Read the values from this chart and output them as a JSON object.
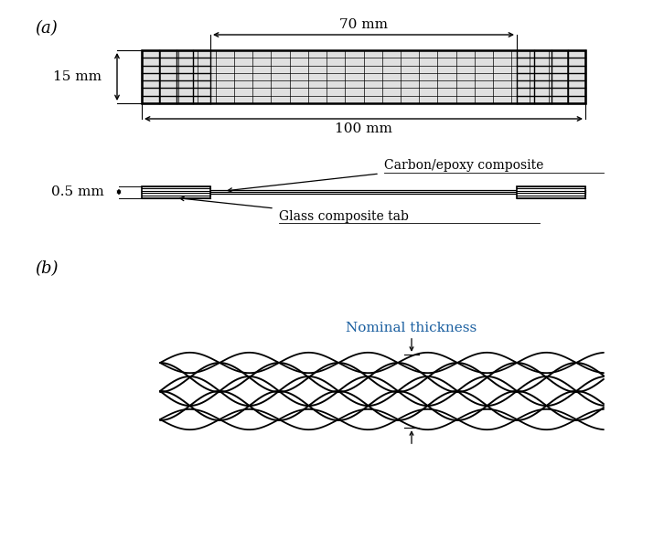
{
  "bg_color": "#ffffff",
  "label_a": "(a)",
  "label_b": "(b)",
  "dim_70mm": "70 mm",
  "dim_100mm": "100 mm",
  "dim_15mm": "15 mm",
  "dim_05mm": "0.5 mm",
  "label_carbon": "Carbon/epoxy composite",
  "label_glass": "Glass composite tab",
  "label_nominal": "Nominal thickness",
  "text_color_black": "#000000",
  "text_color_blue": "#1a5fa0",
  "specimen_fill": "#e0e0e0"
}
